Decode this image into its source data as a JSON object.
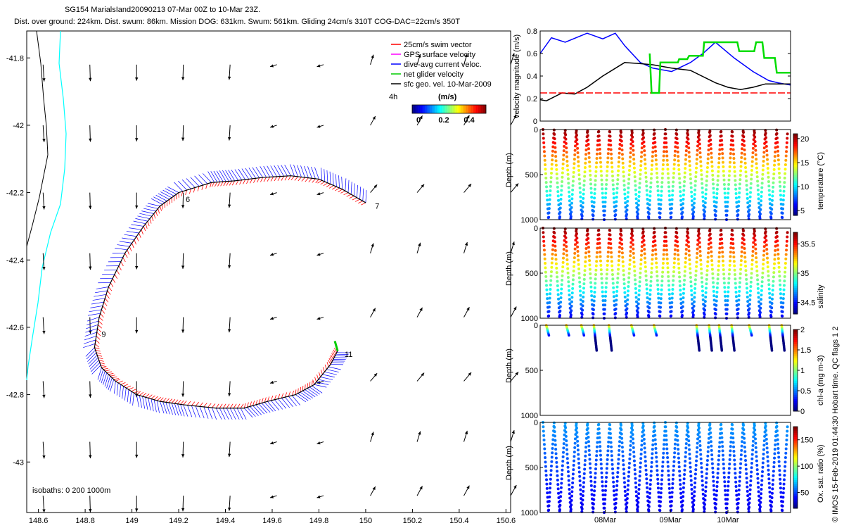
{
  "title_line1": "SG154 MarialsIand20090213 07-Mar 00Z to 10-Mar 23Z.",
  "title_line2": "Dist. over ground: 224km. Dist. swum: 86km. Mission DOG: 631km. Swum: 561km. Gliding 24cm/s 310T COG-DAC=22cm/s 350T",
  "footer_note": "isobaths: 0   200   1000m",
  "side_credit": "© IMOS 15-Feb-2019 01:44:30 Hobart time. QC flags 1  2",
  "legend": {
    "items": [
      {
        "label": "25cm/s swim vector",
        "color": "#ff0000"
      },
      {
        "label": "GPS surface velocity",
        "color": "#ff00ff"
      },
      {
        "label": "dive-avg current veloc.",
        "color": "#0000ff"
      },
      {
        "label": "net glider velocity",
        "color": "#00cc00"
      },
      {
        "label": "sfc geo. vel. 10-Mar-2009",
        "color": "#000000"
      }
    ],
    "interval": "4h",
    "unit": "(m/s)",
    "colorbar_ticks": [
      "0",
      "0.2",
      "0.4"
    ]
  },
  "chart_data": [
    {
      "type": "scatter",
      "name": "map",
      "xlim": [
        148.55,
        150.62
      ],
      "ylim": [
        -43.15,
        -41.72
      ],
      "x_ticks": [
        "148.6",
        "148.8",
        "149",
        "149.2",
        "149.4",
        "149.6",
        "149.8",
        "150",
        "150.2",
        "150.4",
        "150.6"
      ],
      "y_ticks": [
        "-41.8",
        "-42",
        "-42.2",
        "-42.4",
        "-42.6",
        "-42.8",
        "-43"
      ],
      "track": [
        [
          150.0,
          -42.23
        ],
        [
          149.9,
          -42.19
        ],
        [
          149.8,
          -42.16
        ],
        [
          149.68,
          -42.15
        ],
        [
          149.56,
          -42.155
        ],
        [
          149.44,
          -42.165
        ],
        [
          149.34,
          -42.17
        ],
        [
          149.2,
          -42.2
        ],
        [
          149.12,
          -42.24
        ],
        [
          149.05,
          -42.3
        ],
        [
          148.97,
          -42.38
        ],
        [
          148.9,
          -42.48
        ],
        [
          148.86,
          -42.57
        ],
        [
          148.84,
          -42.66
        ],
        [
          148.87,
          -42.72
        ],
        [
          148.93,
          -42.76
        ],
        [
          149.02,
          -42.8
        ],
        [
          149.12,
          -42.82
        ],
        [
          149.22,
          -42.83
        ],
        [
          149.36,
          -42.84
        ],
        [
          149.48,
          -42.84
        ],
        [
          149.58,
          -42.82
        ],
        [
          149.7,
          -42.8
        ],
        [
          149.78,
          -42.77
        ],
        [
          149.85,
          -42.71
        ],
        [
          149.88,
          -42.67
        ]
      ],
      "track_labels": [
        {
          "text": "6",
          "x": 149.23,
          "y": -42.22
        },
        {
          "text": "7",
          "x": 150.04,
          "y": -42.24
        },
        {
          "text": "9",
          "x": 148.87,
          "y": -42.62
        },
        {
          "text": "11",
          "x": 149.91,
          "y": -42.68
        }
      ],
      "grid_lon": [
        148.62,
        148.82,
        149.02,
        149.22,
        149.42,
        149.62,
        149.82,
        150.02,
        150.22,
        150.42,
        150.62
      ],
      "grid_lat": [
        -41.82,
        -42.0,
        -42.2,
        -42.38,
        -42.57,
        -42.76,
        -42.94,
        -43.1
      ],
      "sfc_vel_pattern": "south-southwest in west, northeast in east"
    },
    {
      "type": "line",
      "name": "velocity",
      "ylabel": "velocity magnitude (m/s)",
      "ylim": [
        0,
        0.8
      ],
      "yticks": [
        "0",
        "0.2",
        "0.4",
        "0.6",
        "0.8"
      ],
      "xlim": [
        0,
        4
      ],
      "series": [
        {
          "color": "#0000ff",
          "x": [
            0,
            0.18,
            0.4,
            0.75,
            1.0,
            1.2,
            1.35,
            1.6,
            1.8,
            2.1,
            2.4,
            2.6,
            2.8,
            3.1,
            3.4,
            3.65,
            3.8,
            3.9,
            4.0
          ],
          "y": [
            0.6,
            0.74,
            0.7,
            0.78,
            0.73,
            0.78,
            0.67,
            0.52,
            0.47,
            0.44,
            0.52,
            0.6,
            0.7,
            0.56,
            0.44,
            0.36,
            0.34,
            0.33,
            0.32
          ]
        },
        {
          "color": "#000000",
          "x": [
            0,
            0.1,
            0.35,
            0.55,
            0.75,
            1.0,
            1.35,
            1.6,
            1.8,
            2.1,
            2.4,
            2.8,
            3.0,
            3.2,
            3.4,
            3.6,
            3.8,
            4.0
          ],
          "y": [
            0.19,
            0.18,
            0.25,
            0.24,
            0.3,
            0.4,
            0.52,
            0.51,
            0.5,
            0.47,
            0.45,
            0.34,
            0.3,
            0.28,
            0.3,
            0.33,
            0.33,
            0.33
          ]
        },
        {
          "color": "#ff0000",
          "x": [
            0,
            4.0
          ],
          "y": [
            0.25,
            0.25
          ]
        },
        {
          "color": "#00dd00",
          "x": [
            1.75,
            1.78,
            1.9,
            1.92,
            2.2,
            2.22,
            2.35,
            2.38,
            2.6,
            2.62,
            3.15,
            3.18,
            3.42,
            3.45,
            3.55,
            3.58,
            3.75,
            3.78,
            3.9,
            3.92,
            4.0
          ],
          "y": [
            0.6,
            0.25,
            0.25,
            0.52,
            0.52,
            0.55,
            0.55,
            0.58,
            0.58,
            0.7,
            0.7,
            0.62,
            0.62,
            0.7,
            0.7,
            0.56,
            0.56,
            0.43,
            0.43,
            0.43,
            0.43
          ]
        }
      ]
    },
    {
      "type": "scatter",
      "name": "temperature",
      "ylabel": "Depth (m)",
      "clabel": "temperature (°C)",
      "cticks": [
        "5",
        "10",
        "15",
        "20"
      ],
      "clim": [
        4,
        21
      ],
      "ylim": [
        0,
        1000
      ],
      "yticks": [
        "0",
        "500",
        "1000"
      ],
      "dives": 22
    },
    {
      "type": "scatter",
      "name": "salinity",
      "ylabel": "Depth (m)",
      "clabel": "salinity",
      "cticks": [
        "34.5",
        "35",
        "35.5"
      ],
      "clim": [
        34.3,
        35.7
      ],
      "ylim": [
        0,
        1000
      ],
      "yticks": [
        "0",
        "500",
        "1000"
      ],
      "dives": 22
    },
    {
      "type": "scatter",
      "name": "chlorophyll",
      "ylabel": "Depth (m)",
      "clabel": "chl-a (mg m-3)",
      "cticks": [
        "0",
        "0.5",
        "1",
        "1.5",
        "2"
      ],
      "clim": [
        0,
        2
      ],
      "ylim": [
        0,
        1000
      ],
      "yticks": [
        "0",
        "500",
        "1000"
      ],
      "profiles_x": [
        0.03,
        0.11,
        0.17,
        0.22,
        0.28,
        0.37,
        0.46,
        0.63,
        0.68,
        0.72,
        0.77,
        0.84,
        0.92,
        0.97
      ]
    },
    {
      "type": "scatter",
      "name": "oxygen",
      "ylabel": "Depth (m)",
      "clabel": "Ox. sat. ratio (%)",
      "cticks": [
        "50",
        "100",
        "150"
      ],
      "clim": [
        20,
        175
      ],
      "ylim": [
        0,
        1000
      ],
      "yticks": [
        "0",
        "500",
        "1000"
      ],
      "xticks": [
        "08Mar",
        "09Mar",
        "10Mar"
      ],
      "dives": 22
    }
  ]
}
